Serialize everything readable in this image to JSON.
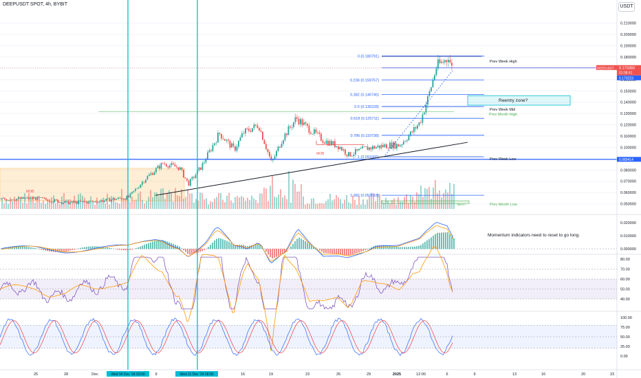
{
  "header": {
    "symbol_label": "DEEPUSDT SPOT, 4h, BYBIT",
    "currency_button": "USDT"
  },
  "colors": {
    "up": "#26a69a",
    "down": "#ef5350",
    "fib": "#2962ff",
    "teal": "#00bcd4",
    "macd": "#2962ff",
    "signal": "#ff9800",
    "rsi": "#7e57c2",
    "stoch_k": "#2962ff",
    "stoch_d": "#f23645"
  },
  "price_axis": {
    "ticks": [
      "0.210000",
      "0.200000",
      "0.190000",
      "0.180000",
      "0.170000",
      "0.160000",
      "0.150000",
      "0.140000",
      "0.130000",
      "0.120000",
      "0.110000",
      "0.100000",
      "0.090000",
      "0.080000",
      "0.070000",
      "0.060000",
      "0.050000"
    ]
  },
  "macd_axis": {
    "ticks": [
      "0.020000",
      "0.010000",
      "0.000000"
    ]
  },
  "rsi_axis": {
    "ticks": [
      "80.00",
      "70.00",
      "60.00",
      "50.00",
      "40.00"
    ]
  },
  "stoch_axis": {
    "ticks": [
      "100.00",
      "75.00",
      "50.00",
      "25.00",
      "0.00"
    ]
  },
  "time_axis": {
    "ticks": [
      "25",
      "28",
      "Dec",
      "5",
      "9",
      "12",
      "16",
      "19",
      "23",
      "26",
      "29",
      "2025",
      "12:00",
      "6",
      "9",
      "13",
      "16",
      "20",
      "23"
    ]
  },
  "crosshair_dates": [
    "Wed 04 Dec '24  03:00",
    "Wed 11 Dec '24  08:00"
  ],
  "price_badges": {
    "current": "0.170383",
    "countdown": "01:08:41",
    "secondary": "0.170223",
    "crosshair": "0.089414"
  },
  "badge_symbol": "DEEPUSDT",
  "fib_levels": [
    {
      "label": "0 (0.180791)",
      "value": 0.180791
    },
    {
      "label": "0.236 (0.159757)",
      "value": 0.159757
    },
    {
      "label": "0.382 (0.146745)",
      "value": 0.146745
    },
    {
      "label": "0.5 (0.136228)",
      "value": 0.136228
    },
    {
      "label": "0.618 (0.125711)",
      "value": 0.125711
    },
    {
      "label": "0.786 (0.110738)",
      "value": 0.110738
    },
    {
      "label": "1 (0.091665)",
      "value": 0.091665
    },
    {
      "label": "1.382 (0.057618)",
      "value": 0.057618
    }
  ],
  "annotations": {
    "prev_week_high": "Prev Week High",
    "prev_week_mid": "Prev Week Mid",
    "prev_month_high": "Prev Month High",
    "prev_week_low": "Prev Week Low",
    "prev_month_low": "Prev Month Low",
    "reentry": "Reentry zone?",
    "momentum_note": "Momentum indicators need to reset to go long.",
    "mob": "MOB"
  },
  "chart_data": {
    "type": "candlestick",
    "title": "DEEPUSDT SPOT, 4h, BYBIT",
    "y_range": [
      0.0455,
      0.222
    ],
    "levels": {
      "prev_week_high": 0.1808,
      "prev_week_mid": 0.1362,
      "prev_month_high": 0.1315,
      "prev_week_low": 0.0917,
      "prev_month_low": 0.0515,
      "crosshair_price": 0.089414
    },
    "reentry_zone": [
      0.1374,
      0.1458
    ],
    "trendline": [
      {
        "x": "Dec 4",
        "y": 0.0575
      },
      {
        "x": "Jan 8",
        "y": 0.1045
      }
    ],
    "key_points": [
      {
        "x": "Nov 25",
        "close": 0.054
      },
      {
        "x": "Dec 4",
        "close": 0.0558
      },
      {
        "x": "Dec 8",
        "close": 0.0858
      },
      {
        "x": "Dec 12",
        "close": 0.0675
      },
      {
        "x": "Dec 15",
        "close": 0.1125
      },
      {
        "x": "Dec 19",
        "close": 0.086
      },
      {
        "x": "Dec 21",
        "close": 0.126
      },
      {
        "x": "Dec 27",
        "close": 0.0932
      },
      {
        "x": "Jan 1",
        "close": 0.102
      },
      {
        "x": "Jan 4",
        "close": 0.1225
      },
      {
        "x": "Jan 6",
        "close": 0.1785
      },
      {
        "x": "Jan 7",
        "close": 0.1704
      }
    ],
    "indicators": [
      "Volume",
      "MACD",
      "RSI",
      "Stochastic RSI"
    ],
    "rsi_band": [
      40,
      60
    ],
    "stoch_band": [
      20,
      80
    ]
  }
}
